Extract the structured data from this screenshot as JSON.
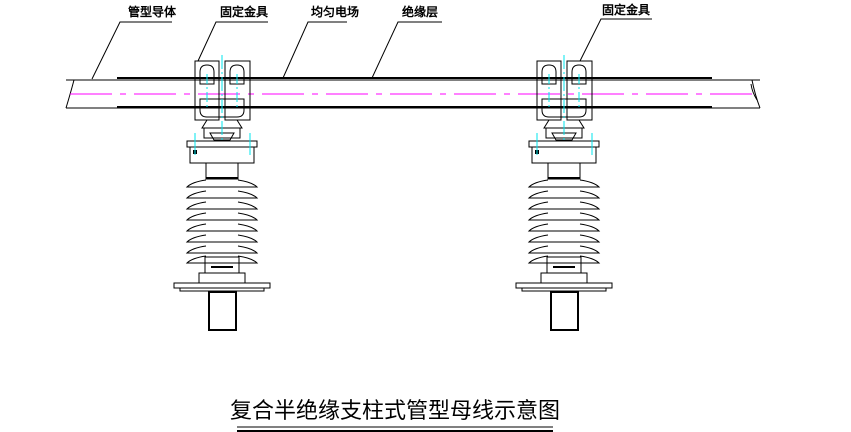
{
  "labels": {
    "conductor": "管型导体",
    "clamp_left": "固定金具",
    "field": "均匀电场",
    "insulation": "绝缘层",
    "clamp_right": "固定金具"
  },
  "title": "复合半绝缘支柱式管型母线示意图",
  "colors": {
    "lines": "#000000",
    "center_line": "#ff00ff",
    "axis_lines": "#00e5ee"
  }
}
